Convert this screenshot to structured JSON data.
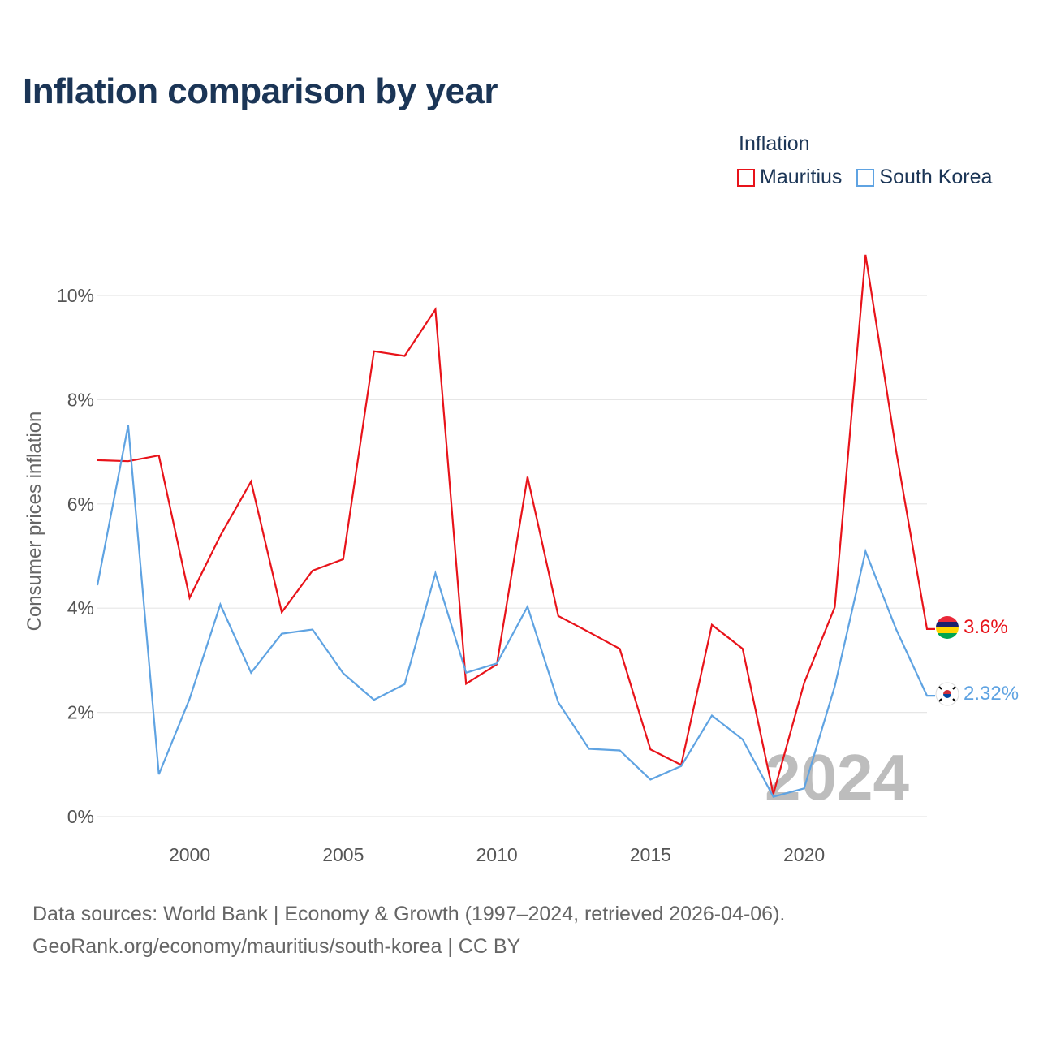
{
  "title": "Inflation comparison by year",
  "legend": {
    "title": "Inflation",
    "items": [
      {
        "name": "Mauritius",
        "color": "#e8131a"
      },
      {
        "name": "South Korea",
        "color": "#5fa3e2"
      }
    ]
  },
  "footer": {
    "line1": "Data sources: World Bank | Economy & Growth (1997–2024, retrieved 2026-04-06).",
    "line2": "GeoRank.org/economy/mauritius/south-korea | CC BY"
  },
  "chart_data": {
    "type": "line",
    "title": "Inflation comparison by year",
    "xlabel": "",
    "ylabel": "Consumer prices inflation",
    "xlim": [
      1997,
      2024
    ],
    "ylim": [
      0,
      10
    ],
    "y_ticks": [
      0,
      2,
      4,
      6,
      8,
      10
    ],
    "y_tick_labels": [
      "0%",
      "2%",
      "4%",
      "6%",
      "8%",
      "10%"
    ],
    "x_ticks": [
      2000,
      2005,
      2010,
      2015,
      2020
    ],
    "x_tick_labels": [
      "2000",
      "2005",
      "2010",
      "2015",
      "2020"
    ],
    "grid": true,
    "watermark_year": "2024",
    "x": [
      1997,
      1998,
      1999,
      2000,
      2001,
      2002,
      2003,
      2004,
      2005,
      2006,
      2007,
      2008,
      2009,
      2010,
      2011,
      2012,
      2013,
      2014,
      2015,
      2016,
      2017,
      2018,
      2019,
      2020,
      2021,
      2022,
      2023,
      2024
    ],
    "series": [
      {
        "name": "Mauritius",
        "color": "#e8131a",
        "end_label": "3.6%",
        "values": [
          6.84,
          6.82,
          6.93,
          4.2,
          5.39,
          6.43,
          3.92,
          4.72,
          4.94,
          8.93,
          8.84,
          9.73,
          2.55,
          2.92,
          6.52,
          3.85,
          3.54,
          3.22,
          1.29,
          0.99,
          3.68,
          3.22,
          0.43,
          2.56,
          4.02,
          10.78,
          7.01,
          3.6
        ]
      },
      {
        "name": "South Korea",
        "color": "#5fa3e2",
        "end_label": "2.32%",
        "values": [
          4.44,
          7.51,
          0.81,
          2.26,
          4.07,
          2.76,
          3.51,
          3.59,
          2.75,
          2.24,
          2.54,
          4.67,
          2.76,
          2.94,
          4.03,
          2.19,
          1.3,
          1.27,
          0.71,
          0.97,
          1.94,
          1.48,
          0.38,
          0.54,
          2.5,
          5.09,
          3.59,
          2.32
        ]
      }
    ]
  }
}
